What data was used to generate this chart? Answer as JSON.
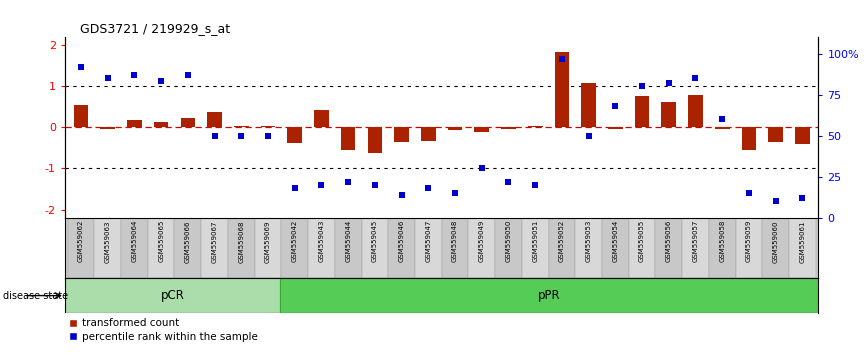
{
  "title": "GDS3721 / 219929_s_at",
  "samples": [
    "GSM559062",
    "GSM559063",
    "GSM559064",
    "GSM559065",
    "GSM559066",
    "GSM559067",
    "GSM559068",
    "GSM559069",
    "GSM559042",
    "GSM559043",
    "GSM559044",
    "GSM559045",
    "GSM559046",
    "GSM559047",
    "GSM559048",
    "GSM559049",
    "GSM559050",
    "GSM559051",
    "GSM559052",
    "GSM559053",
    "GSM559054",
    "GSM559055",
    "GSM559056",
    "GSM559057",
    "GSM559058",
    "GSM559059",
    "GSM559060",
    "GSM559061"
  ],
  "transformed_count": [
    0.55,
    -0.05,
    0.18,
    0.13,
    0.22,
    0.38,
    0.04,
    0.04,
    -0.38,
    0.42,
    -0.56,
    -0.62,
    -0.36,
    -0.34,
    -0.07,
    -0.12,
    -0.05,
    0.04,
    1.85,
    1.08,
    -0.04,
    0.77,
    0.63,
    0.8,
    -0.04,
    -0.56,
    -0.36,
    -0.4
  ],
  "percentile_rank": [
    92,
    85,
    87,
    83,
    87,
    50,
    50,
    50,
    18,
    20,
    22,
    20,
    14,
    18,
    15,
    30,
    22,
    20,
    97,
    50,
    68,
    80,
    82,
    85,
    60,
    15,
    10,
    12
  ],
  "pcr_count": 8,
  "ppr_count": 20,
  "bar_color": "#AA2200",
  "dot_color": "#0000CC",
  "zero_line_color": "#CC0000",
  "dotted_line_color": "#000000",
  "background_color": "#FFFFFF",
  "pcr_color": "#AADDAA",
  "ppr_color": "#55CC55",
  "left_ylim": [
    -2.2,
    2.2
  ],
  "right_ylim": [
    0,
    110
  ],
  "left_yticks": [
    -2,
    -1,
    0,
    1,
    2
  ],
  "right_yticks": [
    0,
    25,
    50,
    75,
    100
  ],
  "right_yticklabels": [
    "0",
    "25",
    "50",
    "75",
    "100%"
  ],
  "legend_red": "transformed count",
  "legend_blue": "percentile rank within the sample",
  "disease_label": "disease state"
}
